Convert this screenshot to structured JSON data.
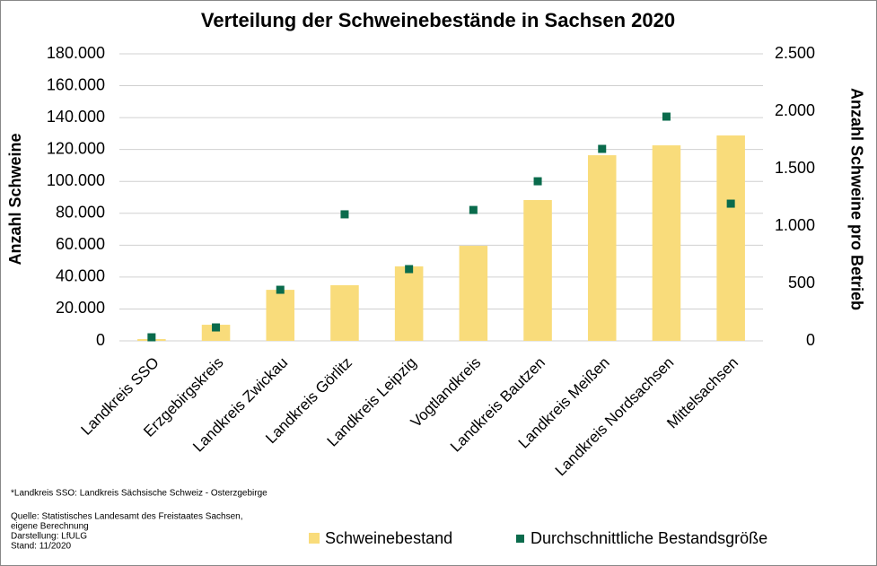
{
  "chart_data": {
    "type": "bar",
    "title": "Verteilung der Schweinebestände in Sachsen 2020",
    "y_label": "Anzahl Schweine",
    "y2_label": "Anzahl Schweine pro Betrieb",
    "categories": [
      "Landkreis SSO",
      "Erzgebirgskreis",
      "Landkreis Zwickau",
      "Landkreis Görlitz",
      "Landkreis Leipzig",
      "Vogtlandkreis",
      "Landkreis Bautzen",
      "Landkreis Meißen",
      "Landkreis Nordsachsen",
      "Mittelsachsen"
    ],
    "series": [
      {
        "name": "Schweinebestand",
        "type": "bar",
        "color": "#f9dc7b",
        "values": [
          1100,
          10100,
          32000,
          34900,
          46700,
          59600,
          88300,
          116400,
          122600,
          128800
        ]
      },
      {
        "name": "Durchschnittliche Bestandsgröße",
        "type": "scatter",
        "axis": "y2",
        "color": "#0a6b4c",
        "values": [
          31,
          117,
          445,
          1102,
          625,
          1140,
          1390,
          1672,
          1953,
          1195
        ]
      }
    ],
    "ylim": [
      0,
      180000
    ],
    "yticks": [
      0,
      {
        "value": 20000,
        "label": "20.000"
      },
      {
        "value": 40000,
        "label": "40.000"
      },
      {
        "value": 60000,
        "label": "60.000"
      },
      {
        "value": 80000,
        "label": "80.000"
      },
      {
        "value": 100000,
        "label": "100.000"
      },
      {
        "value": 120000,
        "label": "120.000"
      },
      {
        "value": 140000,
        "label": "140.000"
      },
      {
        "value": 160000,
        "label": "160.000"
      },
      {
        "value": 180000,
        "label": "180.000"
      }
    ],
    "y2lim": [
      0,
      2500
    ],
    "y2ticks": [
      0,
      500,
      {
        "value": 1000,
        "label": "1.000"
      },
      {
        "value": 1500,
        "label": "1.500"
      },
      {
        "value": 2000,
        "label": "2.000"
      },
      {
        "value": 2500,
        "label": "2.500"
      }
    ],
    "grid": true,
    "legend": "bottom",
    "footnote": "*Landkreis SSO: Landkreis Sächsische Schweiz - Osterzgebirge",
    "source": [
      "Quelle: Statistisches Landesamt des Freistaates Sachsen,",
      "eigene Berechnung",
      "Darstellung: LfULG",
      "Stand: 11/2020"
    ]
  }
}
